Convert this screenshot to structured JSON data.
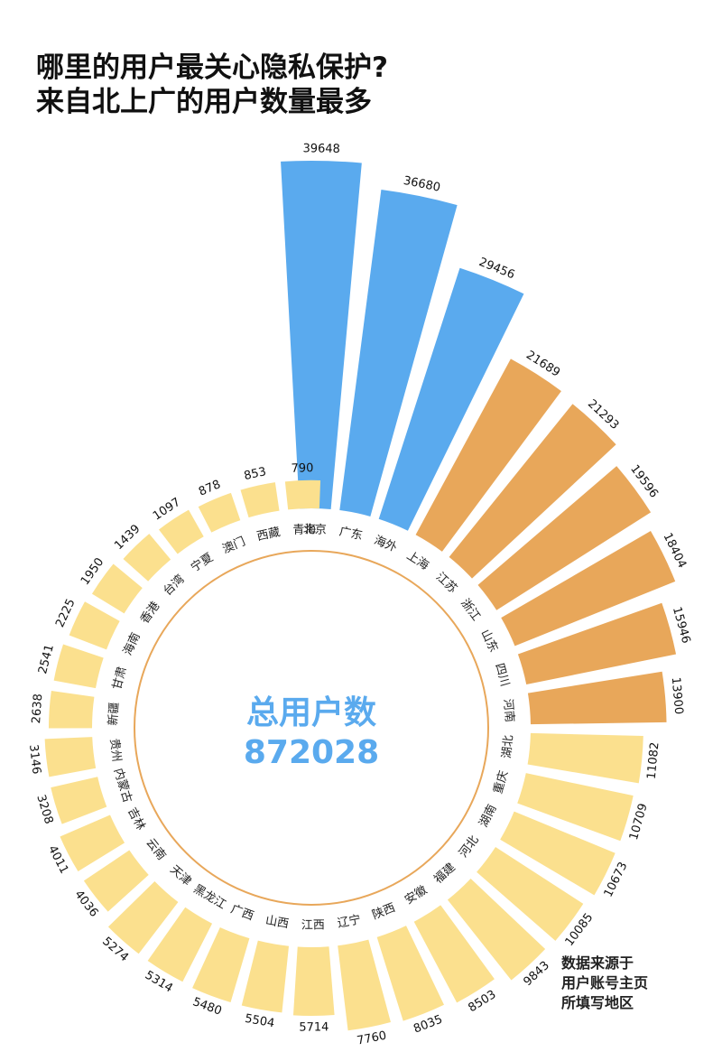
{
  "title": {
    "line1": "哪里的用户最关心隐私保护?",
    "line2": "来自北上广的用户数量最多"
  },
  "center": {
    "label": "总用户数",
    "value": "872028",
    "color": "#5aaaee"
  },
  "source": {
    "line1": "数据来源于",
    "line2": "用户账号主页",
    "line3": "所填写地区"
  },
  "colors": {
    "top_tier": "#5aaaee",
    "middle_tier": "#e8a75a",
    "lower_tier": "#fbe08e",
    "ring": "#e8a75a"
  },
  "chart_data": {
    "type": "bar",
    "layout": "radial",
    "title": "",
    "categories": [
      "北京",
      "广东",
      "海外",
      "上海",
      "江苏",
      "浙江",
      "山东",
      "四川",
      "河南",
      "湖北",
      "重庆",
      "湖南",
      "河北",
      "福建",
      "安徽",
      "陕西",
      "辽宁",
      "江西",
      "山西",
      "广西",
      "黑龙江",
      "天津",
      "云南",
      "吉林",
      "内蒙古",
      "贵州",
      "新疆",
      "甘肃",
      "海南",
      "香港",
      "台湾",
      "宁夏",
      "澳门",
      "西藏",
      "青海"
    ],
    "values": [
      39648,
      36680,
      29456,
      21689,
      21293,
      19596,
      18404,
      15946,
      13900,
      11082,
      10709,
      10673,
      10085,
      9843,
      8503,
      8035,
      7760,
      5714,
      5504,
      5480,
      5314,
      5274,
      4036,
      4011,
      3208,
      3146,
      2638,
      2541,
      2225,
      1950,
      1439,
      1097,
      878,
      853,
      790
    ],
    "tiers": [
      "top",
      "top",
      "top",
      "middle",
      "middle",
      "middle",
      "middle",
      "middle",
      "middle",
      "lower",
      "lower",
      "lower",
      "lower",
      "lower",
      "lower",
      "lower",
      "lower",
      "lower",
      "lower",
      "lower",
      "lower",
      "lower",
      "lower",
      "lower",
      "lower",
      "lower",
      "lower",
      "lower",
      "lower",
      "lower",
      "lower",
      "lower",
      "lower",
      "lower",
      "lower"
    ]
  }
}
